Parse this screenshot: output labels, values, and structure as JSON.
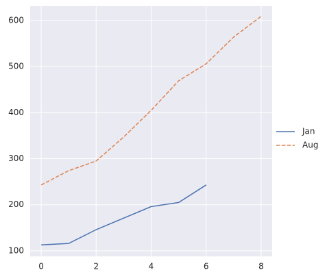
{
  "chart_data": {
    "type": "line",
    "x": [
      0,
      1,
      2,
      3,
      4,
      5,
      6,
      7,
      8
    ],
    "series": [
      {
        "name": "Jan",
        "color": "#4c72b0",
        "linestyle": "solid",
        "values": [
          113,
          116,
          146,
          171,
          196,
          205,
          243,
          null,
          null
        ]
      },
      {
        "name": "Aug",
        "color": "#dd8452",
        "linestyle": "dashed",
        "values": [
          243,
          274,
          295,
          347,
          405,
          469,
          506,
          564,
          609
        ]
      }
    ],
    "xlim": [
      -0.4,
      8.4
    ],
    "xticks": [
      0,
      2,
      4,
      6,
      8
    ],
    "ylim": [
      88,
      631
    ],
    "yticks": [
      100,
      200,
      300,
      400,
      500,
      600
    ],
    "grid": true,
    "legend": "right"
  }
}
